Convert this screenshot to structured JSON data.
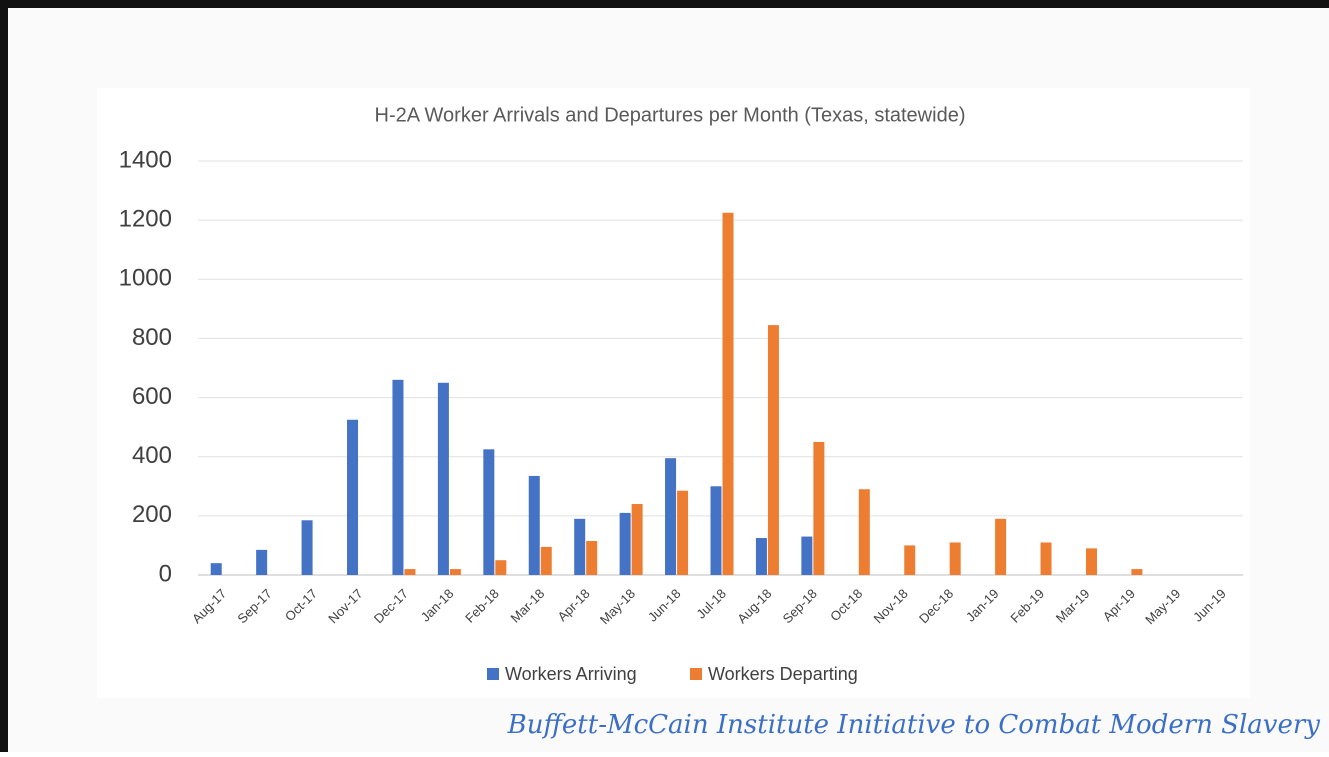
{
  "chart_data": {
    "type": "bar",
    "title": "H-2A Worker Arrivals and Departures per Month (Texas, statewide)",
    "categories": [
      "Aug-17",
      "Sep-17",
      "Oct-17",
      "Nov-17",
      "Dec-17",
      "Jan-18",
      "Feb-18",
      "Mar-18",
      "Apr-18",
      "May-18",
      "Jun-18",
      "Jul-18",
      "Aug-18",
      "Sep-18",
      "Oct-18",
      "Nov-18",
      "Dec-18",
      "Jan-19",
      "Feb-19",
      "Mar-19",
      "Apr-19",
      "May-19",
      "Jun-19"
    ],
    "series": [
      {
        "name": "Workers Arriving",
        "color": "#4472c4",
        "values": [
          40,
          85,
          185,
          525,
          660,
          650,
          425,
          335,
          190,
          210,
          395,
          300,
          125,
          130,
          0,
          0,
          0,
          0,
          0,
          0,
          0,
          0,
          0
        ]
      },
      {
        "name": "Workers Departing",
        "color": "#ed7d31",
        "values": [
          0,
          0,
          0,
          0,
          20,
          20,
          50,
          95,
          115,
          240,
          285,
          1225,
          845,
          450,
          290,
          100,
          110,
          190,
          110,
          90,
          20,
          0,
          0
        ]
      }
    ],
    "ylim": [
      0,
      1400
    ],
    "yticks": [
      0,
      200,
      400,
      600,
      800,
      1000,
      1200,
      1400
    ],
    "grid": true,
    "legend": "bottom"
  },
  "footer": "Buffett-McCain Institute Initiative to Combat Modern Slavery"
}
